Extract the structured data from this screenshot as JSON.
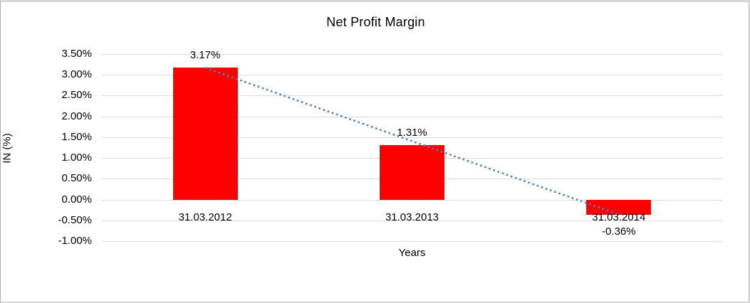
{
  "chart_data": {
    "type": "bar",
    "title": "Net Profit Margin",
    "categories": [
      "31.03.2012",
      "31.03.2013",
      "31.03.2014"
    ],
    "values": [
      3.17,
      1.31,
      -0.36
    ],
    "data_labels": [
      "3.17%",
      "1.31%",
      "-0.36%"
    ],
    "xlabel": "Years",
    "ylabel": "IN (%)",
    "ylim": [
      -1.0,
      3.5
    ],
    "ytick_step": 0.5,
    "ytick_labels": [
      "3.50%",
      "3.00%",
      "2.50%",
      "2.00%",
      "1.50%",
      "1.00%",
      "0.50%",
      "0.00%",
      "-0.50%",
      "-1.00%"
    ],
    "grid": true,
    "legend": "none",
    "bar_color": "#FF0000",
    "gridline_color": "#D9D9D9",
    "text_color": "#000000",
    "trendline": {
      "type": "linear",
      "line_style": "dotted",
      "color": "#4F81BD",
      "start_value": 3.17,
      "end_value": -0.36
    }
  }
}
